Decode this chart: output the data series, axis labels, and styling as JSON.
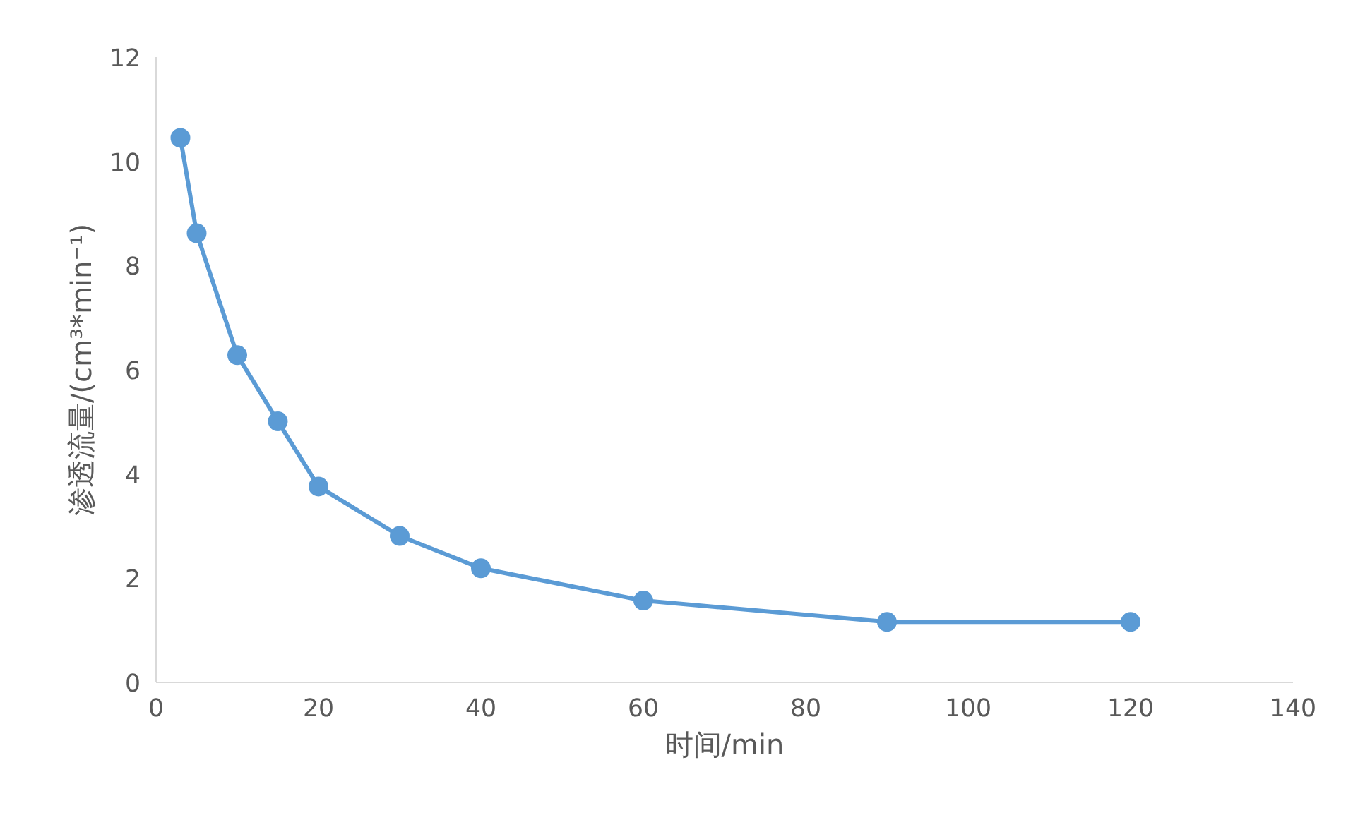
{
  "chart_data": {
    "type": "line",
    "xlabel": "时间/min",
    "ylabel": "渗透流量/(cm³*min⁻¹)",
    "x": [
      3,
      5,
      10,
      15,
      20,
      30,
      40,
      60,
      90,
      120
    ],
    "series": [
      {
        "color": "#5b9bd5",
        "values": [
          10.45,
          8.62,
          6.28,
          5.01,
          3.76,
          2.81,
          2.19,
          1.57,
          1.16,
          1.16
        ]
      }
    ],
    "xlim": [
      0,
      140
    ],
    "xticks": [
      0,
      20,
      40,
      60,
      80,
      100,
      120,
      140
    ],
    "ylim": [
      0,
      12
    ],
    "yticks": [
      0,
      2,
      4,
      6,
      8,
      10,
      12
    ],
    "grid": false,
    "marker": "circle",
    "line_style": "solid"
  }
}
